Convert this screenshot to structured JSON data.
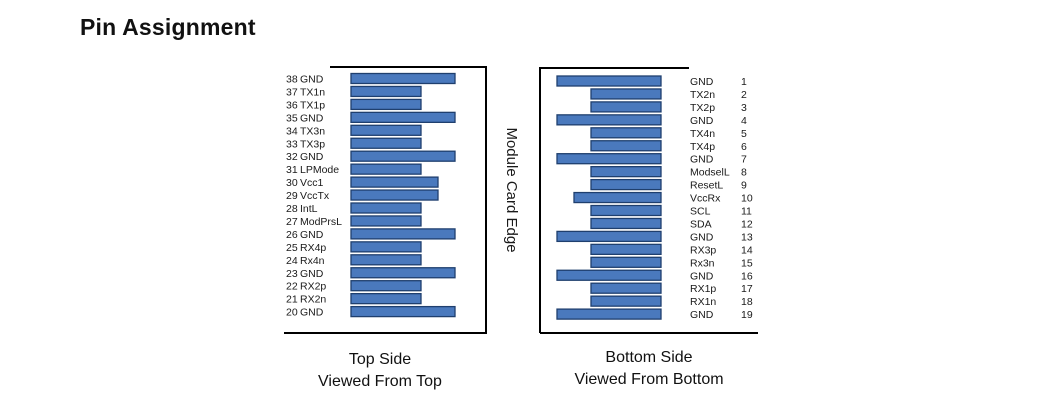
{
  "title": "Pin Assignment",
  "edge_label": "Module Card Edge",
  "colors": {
    "pad_fill": "#4a79bd",
    "pad_stroke": "#1f3f6e"
  },
  "top_side": {
    "caption_line1": "Top Side",
    "caption_line2": "Viewed From Top",
    "pins": [
      {
        "num": "38",
        "name": "GND"
      },
      {
        "num": "37",
        "name": "TX1n"
      },
      {
        "num": "36",
        "name": "TX1p"
      },
      {
        "num": "35",
        "name": "GND"
      },
      {
        "num": "34",
        "name": "TX3n"
      },
      {
        "num": "33",
        "name": "TX3p"
      },
      {
        "num": "32",
        "name": "GND"
      },
      {
        "num": "31",
        "name": "LPMode"
      },
      {
        "num": "30",
        "name": "Vcc1"
      },
      {
        "num": "29",
        "name": "VccTx"
      },
      {
        "num": "28",
        "name": "IntL"
      },
      {
        "num": "27",
        "name": "ModPrsL"
      },
      {
        "num": "26",
        "name": "GND"
      },
      {
        "num": "25",
        "name": "RX4p"
      },
      {
        "num": "24",
        "name": "Rx4n"
      },
      {
        "num": "23",
        "name": "GND"
      },
      {
        "num": "22",
        "name": "RX2p"
      },
      {
        "num": "21",
        "name": "RX2n"
      },
      {
        "num": "20",
        "name": "GND"
      }
    ]
  },
  "bottom_side": {
    "caption_line1": "Bottom Side",
    "caption_line2": "Viewed From Bottom",
    "pins": [
      {
        "num": "1",
        "name": "GND"
      },
      {
        "num": "2",
        "name": "TX2n"
      },
      {
        "num": "3",
        "name": "TX2p"
      },
      {
        "num": "4",
        "name": "GND"
      },
      {
        "num": "5",
        "name": "TX4n"
      },
      {
        "num": "6",
        "name": "TX4p"
      },
      {
        "num": "7",
        "name": "GND"
      },
      {
        "num": "8",
        "name": "ModselL"
      },
      {
        "num": "9",
        "name": "ResetL"
      },
      {
        "num": "10",
        "name": "VccRx"
      },
      {
        "num": "11",
        "name": "SCL"
      },
      {
        "num": "12",
        "name": "SDA"
      },
      {
        "num": "13",
        "name": "GND"
      },
      {
        "num": "14",
        "name": "RX3p"
      },
      {
        "num": "15",
        "name": "Rx3n"
      },
      {
        "num": "16",
        "name": "GND"
      },
      {
        "num": "17",
        "name": "RX1p"
      },
      {
        "num": "18",
        "name": "RX1n"
      },
      {
        "num": "19",
        "name": "GND"
      }
    ]
  }
}
